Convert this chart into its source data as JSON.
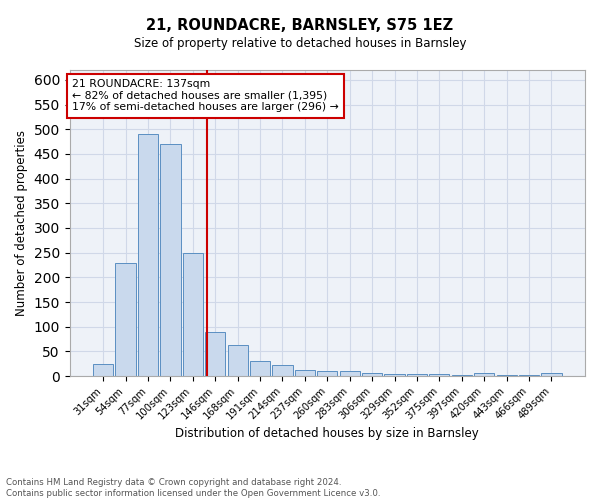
{
  "title": "21, ROUNDACRE, BARNSLEY, S75 1EZ",
  "subtitle": "Size of property relative to detached houses in Barnsley",
  "xlabel": "Distribution of detached houses by size in Barnsley",
  "ylabel": "Number of detached properties",
  "footer_line1": "Contains HM Land Registry data © Crown copyright and database right 2024.",
  "footer_line2": "Contains public sector information licensed under the Open Government Licence v3.0.",
  "bin_labels": [
    "31sqm",
    "54sqm",
    "77sqm",
    "100sqm",
    "123sqm",
    "146sqm",
    "168sqm",
    "191sqm",
    "214sqm",
    "237sqm",
    "260sqm",
    "283sqm",
    "306sqm",
    "329sqm",
    "352sqm",
    "375sqm",
    "397sqm",
    "420sqm",
    "443sqm",
    "466sqm",
    "489sqm"
  ],
  "bar_values": [
    25,
    230,
    490,
    470,
    250,
    90,
    63,
    30,
    22,
    12,
    11,
    10,
    7,
    5,
    4,
    4,
    3,
    7,
    2,
    2,
    6
  ],
  "bar_color": "#c9d9ed",
  "bar_edge_color": "#5a8fc2",
  "grid_color": "#d0d8e8",
  "bg_color": "#eef2f8",
  "vline_x": 4.62,
  "vline_color": "#cc0000",
  "annotation_line1": "21 ROUNDACRE: 137sqm",
  "annotation_line2": "← 82% of detached houses are smaller (1,395)",
  "annotation_line3": "17% of semi-detached houses are larger (296) →",
  "annotation_box_color": "#ffffff",
  "annotation_box_edge": "#cc0000",
  "ylim": [
    0,
    620
  ],
  "yticks": [
    0,
    50,
    100,
    150,
    200,
    250,
    300,
    350,
    400,
    450,
    500,
    550,
    600
  ]
}
